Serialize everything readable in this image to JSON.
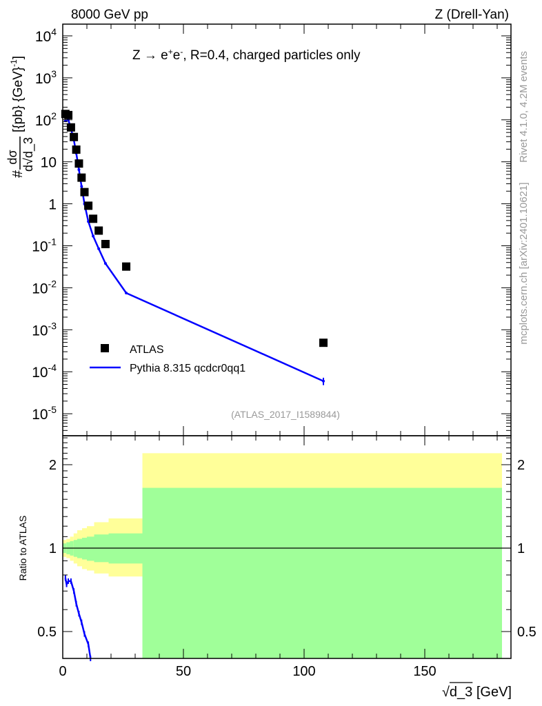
{
  "header": {
    "left": "8000 GeV pp",
    "right": "Z (Drell-Yan)"
  },
  "side": {
    "rivet": "Rivet 4.1.0,  4.2M events",
    "mcplots": "mcplots.cern.ch [arXiv:2401.10621]"
  },
  "chart_data": [
    {
      "type": "scatter",
      "title": "Z → e+e-, R=0.4, charged particles only",
      "process_label": {
        "main": "Z  →  e",
        "sup1": "+",
        "mid": "e",
        "sup2": "-",
        "rest": ", R=0.4, charged particles only"
      },
      "ylabel": "#dσ/d√d_3 [{pb} {GeV}^-1]",
      "ylabel_parts": {
        "hash": "#",
        "num": "dσ",
        "den": "d√d_3",
        "units": "[{pb} {GeV}",
        "units_sup": "-1",
        "units_close": "]"
      },
      "yscale": "log",
      "ylim": [
        3e-06,
        20000.0
      ],
      "xlim": [
        0,
        185
      ],
      "yticks": [
        {
          "v": 10000.0,
          "b": "10",
          "e": "4"
        },
        {
          "v": 1000.0,
          "b": "10",
          "e": "3"
        },
        {
          "v": 100.0,
          "b": "10",
          "e": "2"
        },
        {
          "v": 10,
          "b": "10",
          "e": ""
        },
        {
          "v": 1,
          "b": "1",
          "e": ""
        },
        {
          "v": 0.1,
          "b": "10",
          "e": "-1"
        },
        {
          "v": 0.01,
          "b": "10",
          "e": "-2"
        },
        {
          "v": 0.001,
          "b": "10",
          "e": "-3"
        },
        {
          "v": 0.0001,
          "b": "10",
          "e": "-4"
        },
        {
          "v": 1e-05,
          "b": "10",
          "e": "-5"
        }
      ],
      "legend": {
        "placement": "bottom-left",
        "entries": [
          "ATLAS",
          "Pythia 8.315 qcdcr0qq1"
        ]
      },
      "annotation": "(ATLAS_2017_I1589844)",
      "series": [
        {
          "name": "ATLAS",
          "x": [
            1.1,
            2.3,
            3.4,
            4.6,
            5.6,
            6.7,
            7.8,
            9.0,
            10.6,
            12.6,
            14.9,
            17.7,
            26.3,
            108
          ],
          "y": [
            138,
            130,
            66,
            39,
            19.5,
            9.1,
            4.2,
            1.9,
            0.9,
            0.44,
            0.23,
            0.11,
            0.032,
            0.00049
          ],
          "color": "#000000"
        },
        {
          "name": "Pythia 8.315 qcdcr0qq1",
          "x": [
            1.1,
            2.3,
            3.4,
            4.6,
            5.6,
            6.7,
            7.8,
            9.0,
            10.6,
            12.6,
            14.9,
            17.7,
            26.3,
            108
          ],
          "y": [
            95,
            100,
            62,
            33,
            16,
            6.5,
            2.6,
            1.0,
            0.38,
            0.17,
            0.085,
            0.038,
            0.0075,
            6e-05
          ],
          "yerr_last": 1.2e-05,
          "color": "#0000ff"
        }
      ]
    },
    {
      "type": "line",
      "ylabel": "Ratio to ATLAS",
      "xlabel": "√d_3 [GeV]",
      "xlabel_parts": {
        "sqrt": "√",
        "var": "d_3",
        "unit": " [GeV]"
      },
      "yscale": "log",
      "ylim": [
        0.4,
        2.5
      ],
      "xlim": [
        0,
        185
      ],
      "yticks": [
        {
          "v": 0.5,
          "l": "0.5"
        },
        {
          "v": 1,
          "l": "1"
        },
        {
          "v": 2,
          "l": "2"
        }
      ],
      "xticks": [
        {
          "v": 0,
          "l": "0"
        },
        {
          "v": 50,
          "l": "50"
        },
        {
          "v": 100,
          "l": "100"
        },
        {
          "v": 150,
          "l": "150"
        }
      ],
      "bands": [
        {
          "x0": 0,
          "x1": 1.5,
          "g": [
            0.96,
            1.04
          ],
          "yl": [
            0.93,
            1.07
          ]
        },
        {
          "x0": 1.5,
          "x1": 3,
          "g": [
            0.95,
            1.05
          ],
          "yl": [
            0.92,
            1.08
          ]
        },
        {
          "x0": 3,
          "x1": 4.5,
          "g": [
            0.94,
            1.06
          ],
          "yl": [
            0.9,
            1.1
          ]
        },
        {
          "x0": 4.5,
          "x1": 6,
          "g": [
            0.93,
            1.07
          ],
          "yl": [
            0.88,
            1.13
          ]
        },
        {
          "x0": 6,
          "x1": 8,
          "g": [
            0.92,
            1.08
          ],
          "yl": [
            0.86,
            1.16
          ]
        },
        {
          "x0": 8,
          "x1": 10,
          "g": [
            0.91,
            1.09
          ],
          "yl": [
            0.84,
            1.18
          ]
        },
        {
          "x0": 10,
          "x1": 13,
          "g": [
            0.9,
            1.1
          ],
          "yl": [
            0.83,
            1.2
          ]
        },
        {
          "x0": 13,
          "x1": 19,
          "g": [
            0.89,
            1.12
          ],
          "yl": [
            0.81,
            1.24
          ]
        },
        {
          "x0": 19,
          "x1": 33,
          "g": [
            0.88,
            1.13
          ],
          "yl": [
            0.79,
            1.28
          ]
        },
        {
          "x0": 33,
          "x1": 182,
          "g": [
            0.3,
            1.65
          ],
          "yl": [
            0.3,
            2.2
          ]
        }
      ],
      "series": [
        {
          "name": "Pythia 8.315 qcdcr0qq1 / ATLAS",
          "x": [
            1.1,
            1.6,
            2.3,
            3.4,
            4.6,
            5.6,
            6.7,
            7.8,
            9.0,
            10.6,
            11.5
          ],
          "y": [
            0.78,
            0.74,
            0.76,
            0.76,
            0.7,
            0.63,
            0.58,
            0.54,
            0.49,
            0.45,
            0.4
          ]
        }
      ]
    }
  ],
  "colors": {
    "mc": "#0000ff",
    "data": "#000000",
    "green": "#a0ff99",
    "yellow": "#ffff99"
  }
}
